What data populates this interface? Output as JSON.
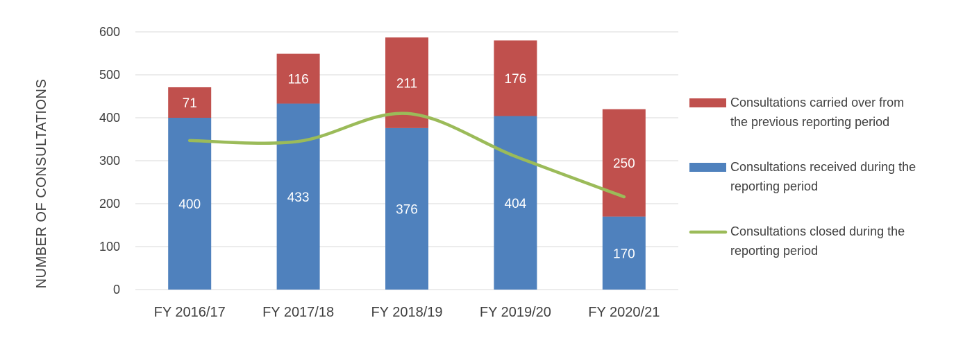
{
  "chart_data": {
    "type": "bar",
    "stacked": true,
    "title": "",
    "xlabel": "",
    "ylabel": "NUMBER OF CONSULTATIONS",
    "ylim": [
      0,
      600
    ],
    "yticks": [
      0,
      100,
      200,
      300,
      400,
      500,
      600
    ],
    "grid": true,
    "legend_position": "right",
    "categories": [
      "FY 2016/17",
      "FY 2017/18",
      "FY 2018/19",
      "FY 2019/20",
      "FY 2020/21"
    ],
    "series": [
      {
        "name": "Consultations received during the reporting period",
        "legend_lines": [
          "Consultations received during the",
          "reporting period"
        ],
        "kind": "bar",
        "color": "#4F81BD",
        "values": [
          400,
          433,
          376,
          404,
          170
        ]
      },
      {
        "name": "Consultations carried over from the previous reporting period",
        "legend_lines": [
          "Consultations carried over from",
          "the previous reporting period"
        ],
        "kind": "bar",
        "color": "#C0504D",
        "values": [
          71,
          116,
          211,
          176,
          250
        ]
      },
      {
        "name": "Consultations closed during the reporting period",
        "legend_lines": [
          "Consultations closed during the",
          "reporting period"
        ],
        "kind": "line",
        "color": "#9BBB59",
        "values": [
          347,
          345,
          410,
          310,
          216
        ]
      }
    ],
    "legend_order": [
      1,
      0,
      2
    ]
  }
}
